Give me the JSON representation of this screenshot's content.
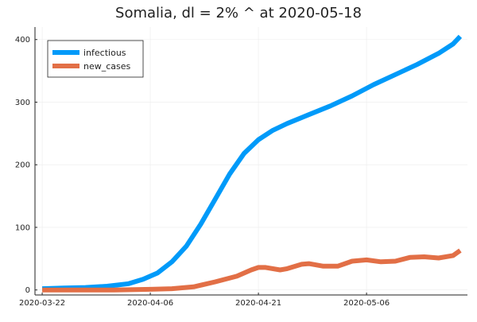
{
  "chart_data": {
    "type": "line",
    "title": "Somalia,  dl = 2% ^ at 2020-05-18",
    "xlabel": "",
    "ylabel": "",
    "x_type": "date",
    "xlim": [
      "2020-03-21",
      "2020-05-20"
    ],
    "ylim": [
      -8,
      420
    ],
    "x_ticks": [
      "2020-03-22",
      "2020-04-06",
      "2020-04-21",
      "2020-05-06"
    ],
    "y_ticks": [
      0,
      100,
      200,
      300,
      400
    ],
    "grid": true,
    "legend_position": "top-left",
    "series": [
      {
        "name": "infectious",
        "color": "#009af9",
        "points": [
          [
            "2020-03-22",
            2
          ],
          [
            "2020-03-25",
            3
          ],
          [
            "2020-03-28",
            4
          ],
          [
            "2020-03-31",
            6
          ],
          [
            "2020-04-03",
            10
          ],
          [
            "2020-04-05",
            17
          ],
          [
            "2020-04-07",
            27
          ],
          [
            "2020-04-09",
            45
          ],
          [
            "2020-04-11",
            70
          ],
          [
            "2020-04-13",
            105
          ],
          [
            "2020-04-15",
            145
          ],
          [
            "2020-04-17",
            185
          ],
          [
            "2020-04-19",
            218
          ],
          [
            "2020-04-21",
            240
          ],
          [
            "2020-04-23",
            255
          ],
          [
            "2020-04-25",
            266
          ],
          [
            "2020-04-28",
            280
          ],
          [
            "2020-05-01",
            294
          ],
          [
            "2020-05-04",
            310
          ],
          [
            "2020-05-07",
            328
          ],
          [
            "2020-05-10",
            344
          ],
          [
            "2020-05-13",
            360
          ],
          [
            "2020-05-16",
            378
          ],
          [
            "2020-05-18",
            393
          ],
          [
            "2020-05-19",
            405
          ]
        ]
      },
      {
        "name": "new_cases",
        "color": "#e26f46",
        "points": [
          [
            "2020-03-22",
            0
          ],
          [
            "2020-03-27",
            0
          ],
          [
            "2020-04-01",
            0
          ],
          [
            "2020-04-06",
            1
          ],
          [
            "2020-04-09",
            2
          ],
          [
            "2020-04-12",
            5
          ],
          [
            "2020-04-15",
            13
          ],
          [
            "2020-04-18",
            22
          ],
          [
            "2020-04-20",
            32
          ],
          [
            "2020-04-21",
            36
          ],
          [
            "2020-04-22",
            36
          ],
          [
            "2020-04-24",
            32
          ],
          [
            "2020-04-25",
            34
          ],
          [
            "2020-04-27",
            41
          ],
          [
            "2020-04-28",
            42
          ],
          [
            "2020-04-30",
            38
          ],
          [
            "2020-05-02",
            38
          ],
          [
            "2020-05-04",
            46
          ],
          [
            "2020-05-06",
            48
          ],
          [
            "2020-05-08",
            45
          ],
          [
            "2020-05-10",
            46
          ],
          [
            "2020-05-12",
            52
          ],
          [
            "2020-05-14",
            53
          ],
          [
            "2020-05-16",
            51
          ],
          [
            "2020-05-18",
            55
          ],
          [
            "2020-05-19",
            63
          ]
        ]
      }
    ]
  }
}
